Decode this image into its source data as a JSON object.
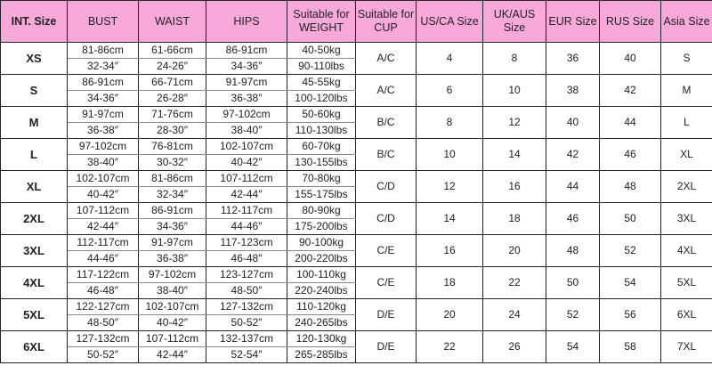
{
  "header_color": "#f8a9d9",
  "headers": [
    "INT. Size",
    "BUST",
    "WAIST",
    "HIPS",
    "Suitable for WEIGHT",
    "Suitable for CUP",
    "US/CA Size",
    "UK/AUS Size",
    "EUR Size",
    "RUS Size",
    "Asia Size"
  ],
  "rows": [
    {
      "size": "XS",
      "bust_cm": "81-86cm",
      "bust_in": "32-34″",
      "waist_cm": "61-66cm",
      "waist_in": "24-26″",
      "hips_cm": "86-91cm",
      "hips_in": "34-36″",
      "weight_kg": "40-50kg",
      "weight_lbs": "90-110lbs",
      "cup": "A/C",
      "us": "4",
      "uk": "8",
      "eur": "36",
      "rus": "40",
      "asia": "S"
    },
    {
      "size": "S",
      "bust_cm": "86-91cm",
      "bust_in": "34-36″",
      "waist_cm": "66-71cm",
      "waist_in": "26-28″",
      "hips_cm": "91-97cm",
      "hips_in": "36-38″",
      "weight_kg": "45-55kg",
      "weight_lbs": "100-120lbs",
      "cup": "A/C",
      "us": "6",
      "uk": "10",
      "eur": "38",
      "rus": "42",
      "asia": "M"
    },
    {
      "size": "M",
      "bust_cm": "91-97cm",
      "bust_in": "36-38″",
      "waist_cm": "71-76cm",
      "waist_in": "28-30″",
      "hips_cm": "97-102cm",
      "hips_in": "38-40″",
      "weight_kg": "50-60kg",
      "weight_lbs": "110-130lbs",
      "cup": "B/C",
      "us": "8",
      "uk": "12",
      "eur": "40",
      "rus": "44",
      "asia": "L"
    },
    {
      "size": "L",
      "bust_cm": "97-102cm",
      "bust_in": "38-40″",
      "waist_cm": "76-81cm",
      "waist_in": "30-32″",
      "hips_cm": "102-107cm",
      "hips_in": "40-42″",
      "weight_kg": "60-70kg",
      "weight_lbs": "130-155lbs",
      "cup": "B/C",
      "us": "10",
      "uk": "14",
      "eur": "42",
      "rus": "46",
      "asia": "XL"
    },
    {
      "size": "XL",
      "bust_cm": "102-107cm",
      "bust_in": "40-42″",
      "waist_cm": "81-86cm",
      "waist_in": "32-34″",
      "hips_cm": "107-112cm",
      "hips_in": "42-44″",
      "weight_kg": "70-80kg",
      "weight_lbs": "155-175lbs",
      "cup": "C/D",
      "us": "12",
      "uk": "16",
      "eur": "44",
      "rus": "48",
      "asia": "2XL"
    },
    {
      "size": "2XL",
      "bust_cm": "107-112cm",
      "bust_in": "42-44″",
      "waist_cm": "86-91cm",
      "waist_in": "34-36″",
      "hips_cm": "112-117cm",
      "hips_in": "44-46″",
      "weight_kg": "80-90kg",
      "weight_lbs": "175-200lbs",
      "cup": "C/D",
      "us": "14",
      "uk": "18",
      "eur": "46",
      "rus": "50",
      "asia": "3XL"
    },
    {
      "size": "3XL",
      "bust_cm": "112-117cm",
      "bust_in": "44-46″",
      "waist_cm": "91-97cm",
      "waist_in": "36-38″",
      "hips_cm": "117-123cm",
      "hips_in": "46-48″",
      "weight_kg": "90-100kg",
      "weight_lbs": "200-220lbs",
      "cup": "C/E",
      "us": "16",
      "uk": "20",
      "eur": "48",
      "rus": "52",
      "asia": "4XL"
    },
    {
      "size": "4XL",
      "bust_cm": "117-122cm",
      "bust_in": "46-48″",
      "waist_cm": "97-102cm",
      "waist_in": "38-40″",
      "hips_cm": "123-127cm",
      "hips_in": "48-50″",
      "weight_kg": "100-110kg",
      "weight_lbs": "220-240lbs",
      "cup": "C/E",
      "us": "18",
      "uk": "22",
      "eur": "50",
      "rus": "54",
      "asia": "5XL"
    },
    {
      "size": "5XL",
      "bust_cm": "122-127cm",
      "bust_in": "48-50″",
      "waist_cm": "102-107cm",
      "waist_in": "40-42″",
      "hips_cm": "127-132cm",
      "hips_in": "50-52″",
      "weight_kg": "110-120kg",
      "weight_lbs": "240-265lbs",
      "cup": "D/E",
      "us": "20",
      "uk": "24",
      "eur": "52",
      "rus": "56",
      "asia": "6XL"
    },
    {
      "size": "6XL",
      "bust_cm": "127-132cm",
      "bust_in": "50-52″",
      "waist_cm": "107-112cm",
      "waist_in": "42-44″",
      "hips_cm": "132-137cm",
      "hips_in": "52-54″",
      "weight_kg": "120-130kg",
      "weight_lbs": "265-285lbs",
      "cup": "D/E",
      "us": "22",
      "uk": "26",
      "eur": "54",
      "rus": "58",
      "asia": "7XL"
    }
  ]
}
